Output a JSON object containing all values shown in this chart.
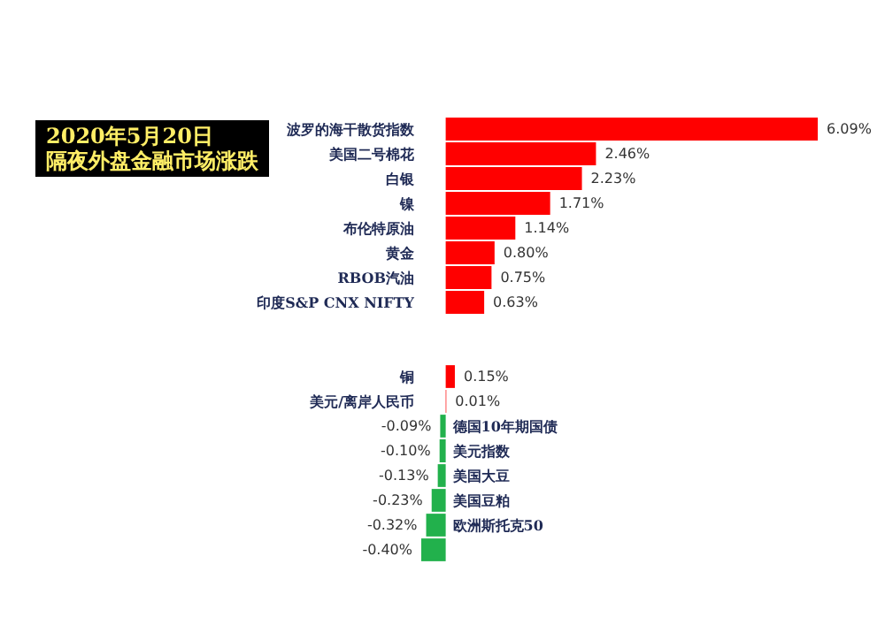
{
  "chart_data": {
    "type": "bar",
    "title": "2020年5月20日",
    "subtitle": "隔夜外盘金融市场涨跌",
    "categories": [
      "波罗的海干散货指数",
      "美国二号棉花",
      "白银",
      "镍",
      "布伦特原油",
      "黄金",
      "RBOB汽油",
      "印度S&P CNX NIFTY",
      null,
      null,
      "铜",
      "美元/离岸人民币",
      "德国10年期国债",
      "美元指数",
      "美国大豆",
      "美国豆粕",
      "欧洲斯托克50",
      null
    ],
    "values": [
      6.09,
      2.46,
      2.23,
      1.71,
      1.14,
      0.8,
      0.75,
      0.63,
      null,
      null,
      0.15,
      0.01,
      -0.09,
      -0.1,
      -0.13,
      -0.23,
      -0.32,
      -0.4
    ],
    "value_labels": [
      "6.09%",
      "2.46%",
      "2.23%",
      "1.71%",
      "1.14%",
      "0.80%",
      "0.75%",
      "0.63%",
      null,
      null,
      "0.15%",
      "0.01%",
      "-0.09%",
      "-0.10%",
      "-0.13%",
      "-0.23%",
      "-0.32%",
      "-0.40%"
    ],
    "colors": [
      "#ff0000",
      "#ff0000",
      "#ff0000",
      "#ff0000",
      "#ff0000",
      "#ff0000",
      "#ff0000",
      "#ff0000",
      "#ff0000",
      "#ff0000",
      "#ff0000",
      "#ff0000",
      "#22b14c",
      "#22b14c",
      "#22b14c",
      "#22b14c",
      "#22b14c",
      "#22b14c"
    ],
    "orientation": "horizontal"
  }
}
